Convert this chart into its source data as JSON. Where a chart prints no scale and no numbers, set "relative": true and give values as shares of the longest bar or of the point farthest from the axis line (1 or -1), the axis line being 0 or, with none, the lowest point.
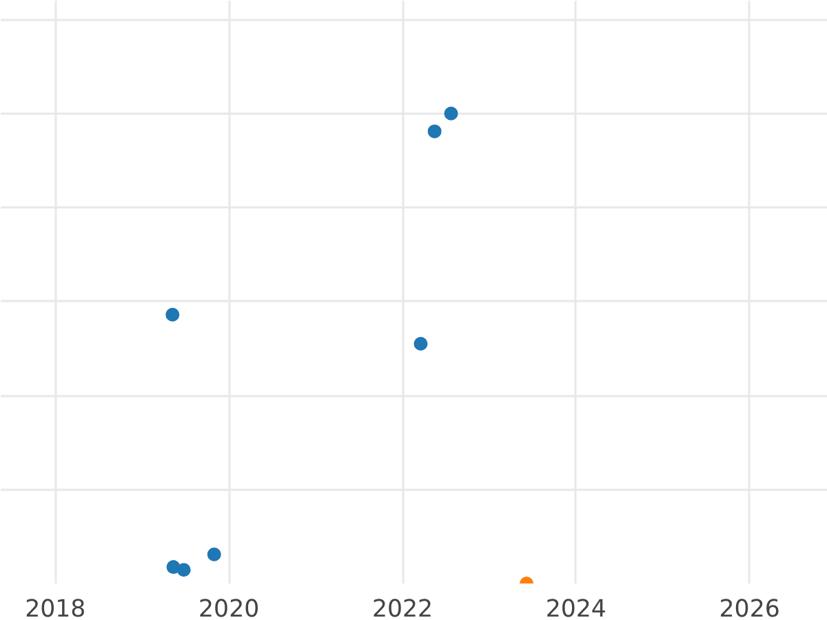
{
  "chart_data": {
    "type": "scatter",
    "relative": true,
    "grid": true,
    "marker": "circle",
    "xlim": [
      2017.37,
      2026.9
    ],
    "xticks": [
      2018,
      2020,
      2022,
      2024,
      2026
    ],
    "tick_labels": "x",
    "series": [
      {
        "color": "#1f77b4",
        "x": [
          2019.36,
          2019.48,
          2019.83,
          2019.35,
          2022.21,
          2022.37,
          2022.56
        ],
        "values": [
          0.035,
          0.029,
          0.062,
          0.572,
          0.51,
          0.962,
          1
        ]
      },
      {
        "color": "#ff7f0e",
        "x": [
          2023.43
        ],
        "values": [
          0
        ]
      }
    ]
  }
}
